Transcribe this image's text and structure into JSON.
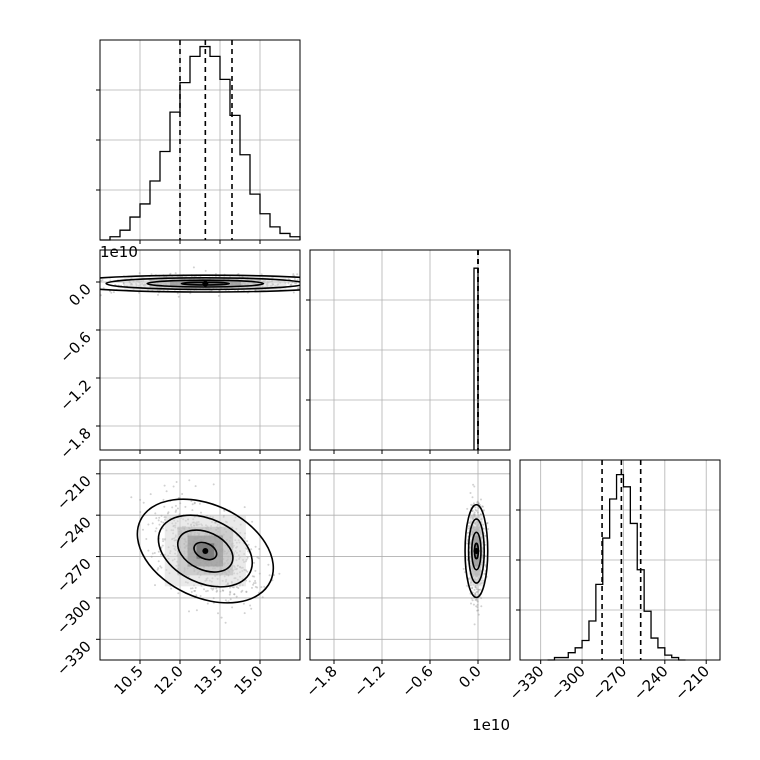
{
  "chart_data": {
    "type": "corner",
    "parameters": 3,
    "grid": true,
    "panels": [
      {
        "id": "hist-p0",
        "kind": "histogram",
        "param": 0,
        "xlim": [
          9.0,
          16.5
        ],
        "bin_edges": [
          9.0,
          9.375,
          9.75,
          10.125,
          10.5,
          10.875,
          11.25,
          11.625,
          12.0,
          12.375,
          12.75,
          13.125,
          13.5,
          13.875,
          14.25,
          14.625,
          15.0,
          15.375,
          15.75,
          16.125,
          16.5
        ],
        "counts": [
          0,
          1,
          3,
          7,
          11,
          18,
          27,
          39,
          48,
          56,
          59,
          56,
          49,
          38,
          26,
          14,
          8,
          4,
          2,
          1
        ],
        "quantiles": [
          12.0,
          12.95,
          13.95
        ],
        "ymax": 61
      },
      {
        "id": "hist-p1",
        "kind": "histogram",
        "param": 1,
        "xlim": [
          -2.1,
          0.4
        ],
        "bin_edges": [
          -0.05,
          0.0
        ],
        "counts": [
          1
        ],
        "quantiles": [
          0.0,
          0.0,
          0.0
        ],
        "ymax": 1.1
      },
      {
        "id": "hist-p2",
        "kind": "histogram",
        "param": 2,
        "xlim": [
          -345,
          -200
        ],
        "bin_edges": [
          -325,
          -320,
          -315,
          -310,
          -305,
          -300,
          -295,
          -290,
          -285,
          -280,
          -275,
          -270,
          -265,
          -260,
          -255,
          -250,
          -245,
          -240,
          -235,
          -230,
          -225
        ],
        "counts": [
          0,
          1,
          1,
          3,
          5,
          8,
          16,
          31,
          50,
          66,
          76,
          71,
          56,
          37,
          20,
          9,
          5,
          2,
          1,
          0
        ],
        "quantiles": [
          -285.5,
          -271.5,
          -257.5
        ],
        "ymax": 82
      },
      {
        "id": "scatter-p1-vs-p0",
        "kind": "2d",
        "x_param": 0,
        "y_param": 1,
        "xlim": [
          9.0,
          16.5
        ],
        "ylim": [
          -2.1,
          0.4
        ],
        "center": [
          12.95,
          -0.02
        ],
        "spread": [
          1.9,
          0.05
        ]
      },
      {
        "id": "scatter-p2-vs-p0",
        "kind": "2d",
        "x_param": 0,
        "y_param": 2,
        "xlim": [
          9.0,
          16.5
        ],
        "ylim": [
          -345,
          -200
        ],
        "center": [
          12.95,
          -266
        ],
        "spread": [
          0.95,
          16
        ]
      },
      {
        "id": "scatter-p2-vs-p1",
        "kind": "2d",
        "x_param": 1,
        "y_param": 2,
        "xlim": [
          -2.1,
          0.4
        ],
        "ylim": [
          -345,
          -200
        ],
        "center": [
          -0.02,
          -266
        ],
        "spread": [
          0.05,
          16
        ]
      }
    ],
    "axes": {
      "p0": {
        "ticks": [
          10.5,
          12.0,
          13.5,
          15.0
        ],
        "tick_labels": [
          "10.5",
          "12.0",
          "13.5",
          "15.0"
        ]
      },
      "p1": {
        "ticks": [
          -1.8,
          -1.2,
          -0.6,
          0.0
        ],
        "tick_labels": [
          "−1.8",
          "−1.2",
          "−0.6",
          "0.0"
        ],
        "offset_text": "1e10"
      },
      "p2": {
        "ticks": [
          -330,
          -300,
          -270,
          -240,
          -210
        ],
        "tick_labels": [
          "−330",
          "−300",
          "−270",
          "−240",
          "−210"
        ]
      }
    }
  }
}
